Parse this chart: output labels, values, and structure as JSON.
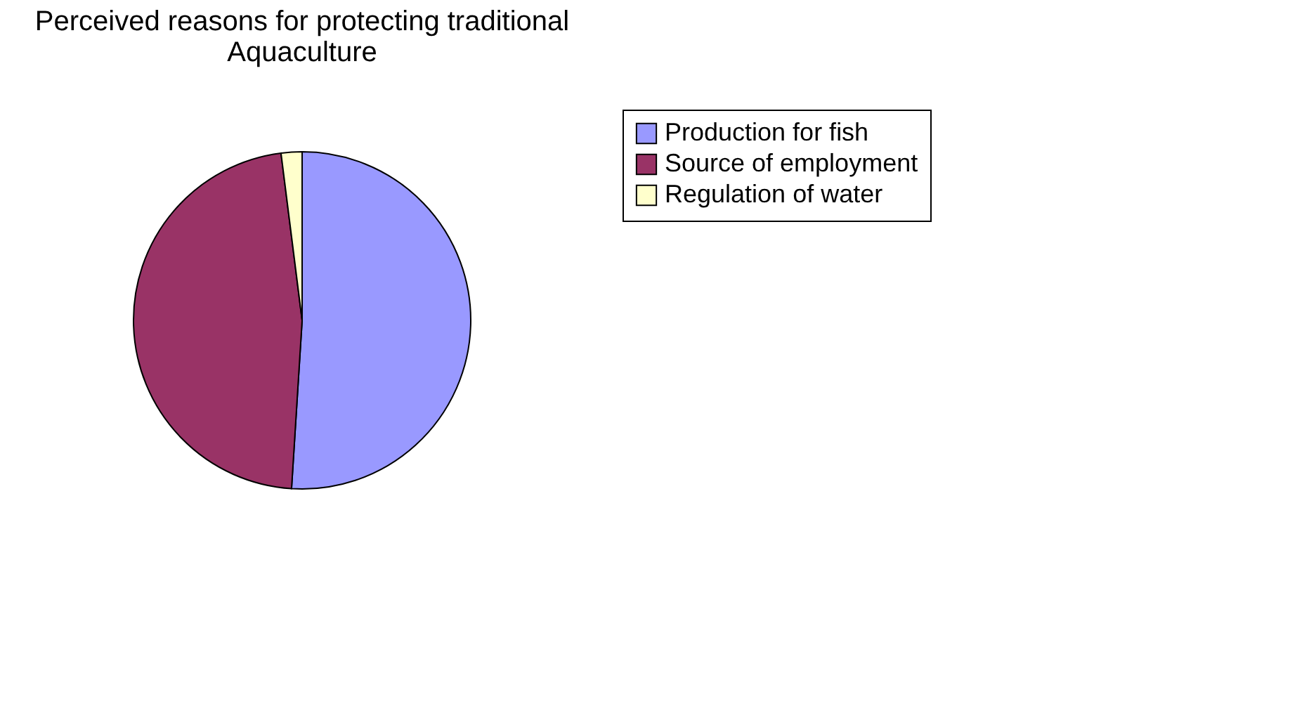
{
  "chart_data": {
    "type": "pie",
    "title": [
      "Perceived reasons for protecting traditional",
      "Aquaculture"
    ],
    "categories": [
      "Production for fish",
      "Source of employment",
      "Regulation of water"
    ],
    "values": [
      51,
      47,
      2
    ],
    "colors": [
      "#9999ff",
      "#993366",
      "#ffffcc"
    ],
    "legend": "right"
  }
}
